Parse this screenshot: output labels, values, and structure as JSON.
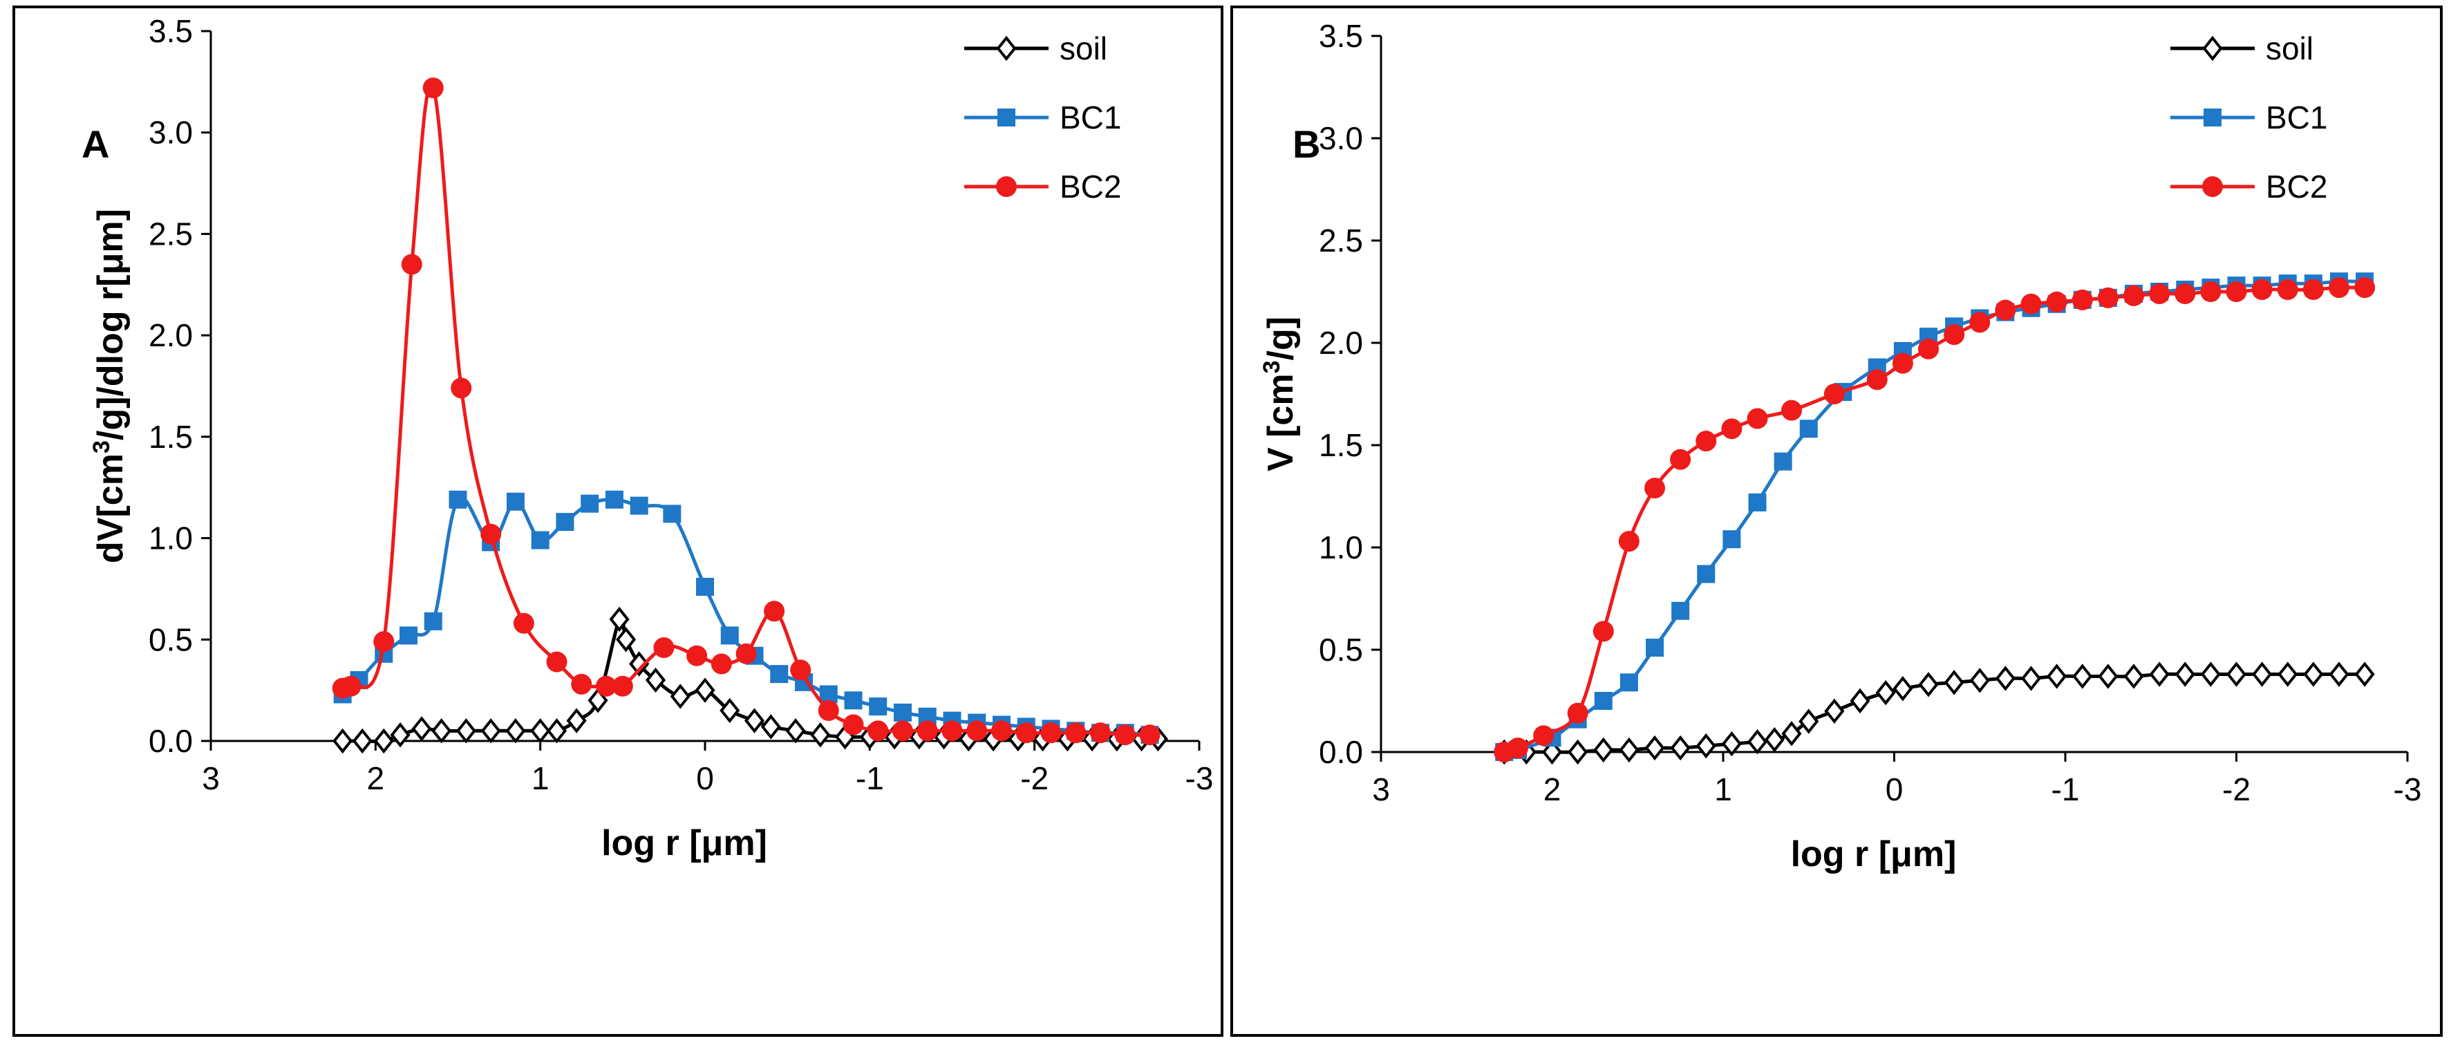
{
  "chart_data": [
    {
      "type": "line",
      "panel_label": "A",
      "xlabel": "log r [μm]",
      "ylabel_parts": [
        "dV[cm",
        "3",
        "/g]/dlog r[μm]"
      ],
      "xlim": [
        3,
        -3
      ],
      "ylim": [
        0,
        3.5
      ],
      "xticks": [
        "3",
        "2",
        "1",
        "0",
        "-1",
        "-2",
        "-3"
      ],
      "yticks": [
        "0.0",
        "0.5",
        "1.0",
        "1.5",
        "2.0",
        "2.5",
        "3.0",
        "3.5"
      ],
      "legend_position": "top-right",
      "series": [
        {
          "name": "soil",
          "color": "#000000",
          "marker": "diamond-open",
          "x": [
            2.2,
            2.08,
            1.95,
            1.85,
            1.72,
            1.6,
            1.45,
            1.3,
            1.15,
            1.0,
            0.9,
            0.78,
            0.65,
            0.52,
            0.48,
            0.4,
            0.3,
            0.15,
            0.0,
            -0.15,
            -0.3,
            -0.4,
            -0.55,
            -0.7,
            -0.85,
            -1.0,
            -1.15,
            -1.3,
            -1.45,
            -1.6,
            -1.75,
            -1.9,
            -2.05,
            -2.2,
            -2.35,
            -2.5,
            -2.65,
            -2.75
          ],
          "y": [
            0.0,
            0.0,
            0.0,
            0.03,
            0.06,
            0.05,
            0.05,
            0.05,
            0.05,
            0.05,
            0.05,
            0.1,
            0.2,
            0.6,
            0.5,
            0.38,
            0.3,
            0.22,
            0.25,
            0.15,
            0.1,
            0.07,
            0.05,
            0.03,
            0.02,
            0.02,
            0.02,
            0.02,
            0.02,
            0.01,
            0.01,
            0.01,
            0.01,
            0.01,
            0.01,
            0.01,
            0.01,
            0.01
          ]
        },
        {
          "name": "BC1",
          "color": "#1F78C8",
          "marker": "square",
          "x": [
            2.2,
            2.1,
            1.95,
            1.8,
            1.65,
            1.5,
            1.3,
            1.15,
            1.0,
            0.85,
            0.7,
            0.55,
            0.4,
            0.2,
            0.0,
            -0.15,
            -0.3,
            -0.45,
            -0.6,
            -0.75,
            -0.9,
            -1.05,
            -1.2,
            -1.35,
            -1.5,
            -1.65,
            -1.8,
            -1.95,
            -2.1,
            -2.25,
            -2.4,
            -2.55,
            -2.7
          ],
          "y": [
            0.23,
            0.3,
            0.43,
            0.52,
            0.59,
            1.19,
            0.98,
            1.18,
            0.99,
            1.08,
            1.17,
            1.19,
            1.16,
            1.12,
            0.76,
            0.52,
            0.42,
            0.33,
            0.29,
            0.23,
            0.2,
            0.17,
            0.14,
            0.12,
            0.1,
            0.09,
            0.08,
            0.07,
            0.06,
            0.05,
            0.04,
            0.04,
            0.03
          ]
        },
        {
          "name": "BC2",
          "color": "#EE1B1B",
          "marker": "circle",
          "x": [
            2.2,
            2.15,
            1.95,
            1.78,
            1.65,
            1.48,
            1.3,
            1.1,
            0.9,
            0.75,
            0.6,
            0.5,
            0.25,
            0.05,
            -0.1,
            -0.25,
            -0.42,
            -0.58,
            -0.75,
            -0.9,
            -1.05,
            -1.2,
            -1.35,
            -1.5,
            -1.65,
            -1.8,
            -1.95,
            -2.1,
            -2.25,
            -2.4,
            -2.55,
            -2.7
          ],
          "y": [
            0.26,
            0.27,
            0.49,
            2.35,
            3.22,
            1.74,
            1.02,
            0.58,
            0.39,
            0.28,
            0.27,
            0.27,
            0.46,
            0.42,
            0.38,
            0.43,
            0.64,
            0.35,
            0.15,
            0.08,
            0.05,
            0.05,
            0.05,
            0.05,
            0.05,
            0.05,
            0.04,
            0.04,
            0.04,
            0.04,
            0.03,
            0.03
          ]
        }
      ]
    },
    {
      "type": "line",
      "panel_label": "B",
      "xlabel": "log r [μm]",
      "ylabel_parts": [
        "V [cm",
        "3",
        "/g]"
      ],
      "xlim": [
        3,
        -3
      ],
      "ylim": [
        0,
        3.5
      ],
      "xticks": [
        "3",
        "2",
        "1",
        "0",
        "-1",
        "-2",
        "-3"
      ],
      "yticks": [
        "0.0",
        "0.5",
        "1.0",
        "1.5",
        "2.0",
        "2.5",
        "3.0",
        "3.5"
      ],
      "legend_position": "top-right",
      "series": [
        {
          "name": "soil",
          "color": "#000000",
          "marker": "diamond-open",
          "x": [
            2.28,
            2.15,
            2.0,
            1.85,
            1.7,
            1.55,
            1.4,
            1.25,
            1.1,
            0.95,
            0.8,
            0.7,
            0.6,
            0.5,
            0.35,
            0.2,
            0.05,
            -0.05,
            -0.2,
            -0.35,
            -0.5,
            -0.65,
            -0.8,
            -0.95,
            -1.1,
            -1.25,
            -1.4,
            -1.55,
            -1.7,
            -1.85,
            -2.0,
            -2.15,
            -2.3,
            -2.45,
            -2.6,
            -2.75
          ],
          "y": [
            0.0,
            0.0,
            0.0,
            0.0,
            0.01,
            0.01,
            0.02,
            0.02,
            0.03,
            0.04,
            0.05,
            0.06,
            0.09,
            0.15,
            0.2,
            0.25,
            0.29,
            0.31,
            0.33,
            0.34,
            0.35,
            0.36,
            0.36,
            0.37,
            0.37,
            0.37,
            0.37,
            0.38,
            0.38,
            0.38,
            0.38,
            0.38,
            0.38,
            0.38,
            0.38,
            0.38
          ]
        },
        {
          "name": "BC1",
          "color": "#1F78C8",
          "marker": "square",
          "x": [
            2.28,
            2.2,
            2.0,
            1.85,
            1.7,
            1.55,
            1.4,
            1.25,
            1.1,
            0.95,
            0.8,
            0.65,
            0.5,
            0.3,
            0.1,
            -0.05,
            -0.2,
            -0.35,
            -0.5,
            -0.65,
            -0.8,
            -0.95,
            -1.1,
            -1.25,
            -1.4,
            -1.55,
            -1.7,
            -1.85,
            -2.0,
            -2.15,
            -2.3,
            -2.45,
            -2.6,
            -2.75
          ],
          "y": [
            0.0,
            0.01,
            0.07,
            0.16,
            0.25,
            0.34,
            0.51,
            0.69,
            0.87,
            1.04,
            1.22,
            1.42,
            1.58,
            1.76,
            1.88,
            1.96,
            2.03,
            2.08,
            2.12,
            2.15,
            2.17,
            2.19,
            2.21,
            2.22,
            2.24,
            2.25,
            2.26,
            2.27,
            2.28,
            2.28,
            2.29,
            2.29,
            2.3,
            2.3
          ]
        },
        {
          "name": "BC2",
          "color": "#EE1B1B",
          "marker": "circle",
          "x": [
            2.28,
            2.2,
            2.05,
            1.85,
            1.7,
            1.55,
            1.4,
            1.25,
            1.1,
            0.95,
            0.8,
            0.6,
            0.35,
            0.1,
            -0.05,
            -0.2,
            -0.35,
            -0.5,
            -0.65,
            -0.8,
            -0.95,
            -1.1,
            -1.25,
            -1.4,
            -1.55,
            -1.7,
            -1.85,
            -2.0,
            -2.15,
            -2.3,
            -2.45,
            -2.6,
            -2.75
          ],
          "y": [
            0.0,
            0.02,
            0.08,
            0.19,
            0.59,
            1.03,
            1.29,
            1.43,
            1.52,
            1.58,
            1.63,
            1.67,
            1.75,
            1.82,
            1.9,
            1.97,
            2.04,
            2.1,
            2.16,
            2.19,
            2.2,
            2.21,
            2.22,
            2.23,
            2.24,
            2.24,
            2.25,
            2.25,
            2.26,
            2.26,
            2.26,
            2.27,
            2.27
          ]
        }
      ]
    }
  ]
}
